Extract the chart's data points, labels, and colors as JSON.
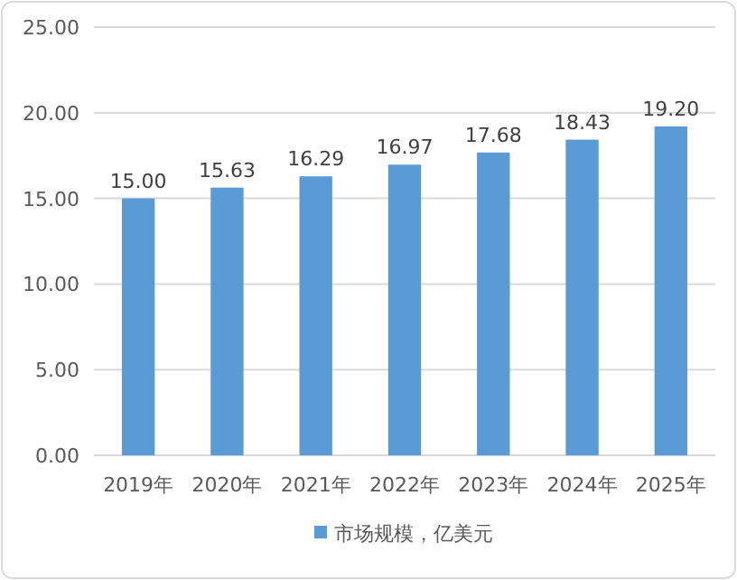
{
  "chart_data": {
    "type": "bar",
    "categories": [
      "2019年",
      "2020年",
      "2021年",
      "2022年",
      "2023年",
      "2024年",
      "2025年"
    ],
    "series": [
      {
        "name": "市场规模，亿美元",
        "color": "#5b9bd5",
        "values": [
          15.0,
          15.63,
          16.29,
          16.97,
          17.68,
          18.43,
          19.2
        ]
      }
    ],
    "ylim": [
      0,
      25
    ],
    "yticks": [
      {
        "value": 0,
        "label": "0.00"
      },
      {
        "value": 5,
        "label": "5.00"
      },
      {
        "value": 10,
        "label": "10.00"
      },
      {
        "value": 15,
        "label": "15.00"
      },
      {
        "value": 20,
        "label": "20.00"
      },
      {
        "value": 25,
        "label": "25.00"
      }
    ],
    "value_labels": [
      "15.00",
      "15.63",
      "16.29",
      "16.97",
      "17.68",
      "18.43",
      "19.20"
    ],
    "grid": "y",
    "legend": "bottom"
  }
}
